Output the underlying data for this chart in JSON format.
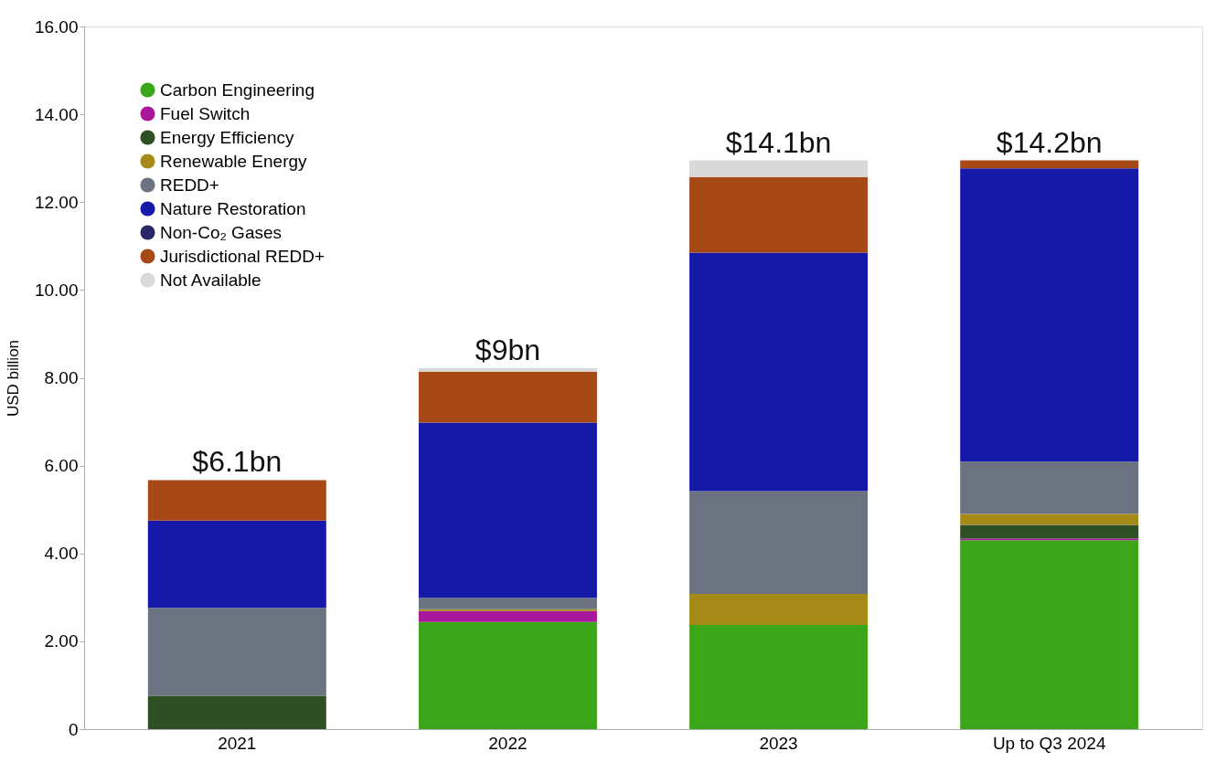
{
  "chart_data": {
    "type": "bar",
    "stacked": true,
    "ylabel": "USD billion",
    "categories": [
      "2021",
      "2022",
      "2023",
      "Up to Q3 2024"
    ],
    "series": [
      {
        "name": "Carbon Engineering",
        "color": "#3ca61b",
        "values": [
          0,
          2.44,
          2.37,
          4.3
        ]
      },
      {
        "name": "Fuel Switch",
        "color": "#a8189a",
        "values": [
          0,
          0.25,
          0,
          0.04
        ]
      },
      {
        "name": "Energy Efficiency",
        "color": "#2f4f24",
        "values": [
          0.76,
          0,
          0,
          0.31
        ]
      },
      {
        "name": "Renewable Energy",
        "color": "#a58a18",
        "values": [
          0,
          0.04,
          0.71,
          0.25
        ]
      },
      {
        "name": "REDD+",
        "color": "#6c7380",
        "values": [
          2.0,
          0.26,
          2.34,
          1.19
        ]
      },
      {
        "name": "Nature Restoration",
        "color": "#1619a8",
        "values": [
          1.99,
          3.99,
          5.43,
          6.68
        ]
      },
      {
        "name": "Non-Co₂ Gases",
        "color": "#2a2766",
        "values": [
          0,
          0,
          0,
          0
        ]
      },
      {
        "name": "Jurisdictional REDD+",
        "color": "#a74817",
        "values": [
          0.92,
          1.16,
          1.72,
          0.18
        ]
      },
      {
        "name": "Not Available",
        "color": "#d9d9d9",
        "values": [
          0,
          0.08,
          0.38,
          0
        ]
      }
    ],
    "annotations": [
      {
        "text": "$6.1bn",
        "x": "2021",
        "y": 5.67
      },
      {
        "text": "$9bn",
        "x": "2022",
        "y": 8.22
      },
      {
        "text": "$14.1bn",
        "x": "2023",
        "y": 12.95
      },
      {
        "text": "$14.2bn",
        "x": "Up to Q3 2024",
        "y": 12.95
      }
    ],
    "ylim": [
      0,
      16
    ],
    "yticks": [
      {
        "value": 0,
        "label": "0"
      },
      {
        "value": 2,
        "label": "2.00"
      },
      {
        "value": 4,
        "label": "4.00"
      },
      {
        "value": 6,
        "label": "6.00"
      },
      {
        "value": 8,
        "label": "8.00"
      },
      {
        "value": 10,
        "label": "10.00"
      },
      {
        "value": 12,
        "label": "12.00"
      },
      {
        "value": 14,
        "label": "14.00"
      },
      {
        "value": 16,
        "label": "16.00"
      }
    ],
    "grid": false,
    "legend": "top left"
  }
}
